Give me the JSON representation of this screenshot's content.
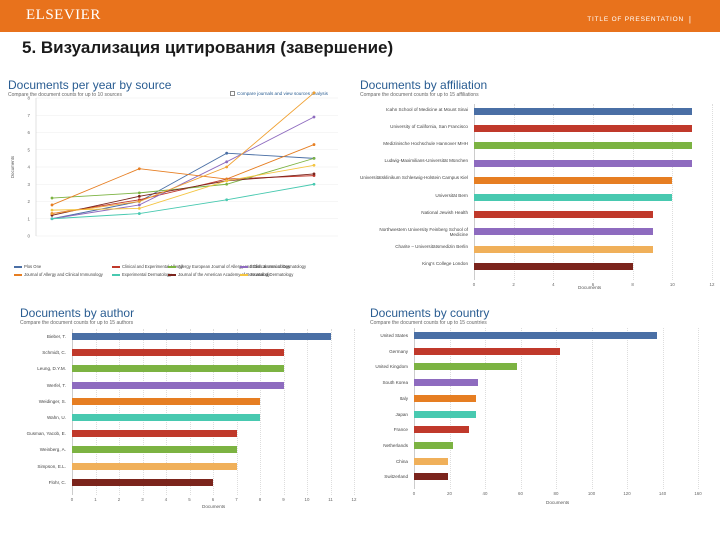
{
  "header": {
    "brand": "ELSEVIER",
    "presentation_label": "TITLE OF PRESENTATION",
    "separator": "|",
    "accent_color": "#e8721c"
  },
  "slide": {
    "title": "5. Визуализация цитирования (завершение)"
  },
  "panels": {
    "source": {
      "title": "Documents per year by source",
      "subtitle": "Compare the document counts for up to 10 sources",
      "compare_label": "Compare journals and view sources analysis",
      "y_axis_label": "Documents"
    },
    "affiliation": {
      "title": "Documents by affiliation",
      "subtitle": "Compare the document counts for up to 15 affiliations",
      "x_axis_label": "Documents"
    },
    "author": {
      "title": "Documents by author",
      "subtitle": "Compare the document counts for up to 15 authors",
      "x_axis_label": "Documents"
    },
    "country": {
      "title": "Documents by country",
      "subtitle": "Compare the document counts for up to 15 countries",
      "x_axis_label": "Documents"
    }
  },
  "chart_data": [
    {
      "type": "line",
      "title": "Documents per year by source",
      "ylabel": "Documents",
      "ylim": [
        0,
        8
      ],
      "yticks": [
        0,
        1,
        2,
        3,
        4,
        5,
        6,
        7,
        8
      ],
      "x": [
        0,
        1,
        2,
        3
      ],
      "series": [
        {
          "name": "Plos One",
          "color": "#4a6fa5",
          "values": [
            1.0,
            2.0,
            4.8,
            4.5
          ]
        },
        {
          "name": "Clinical and Experimental Allergy",
          "color": "#c0392b",
          "values": [
            1.3,
            2.1,
            3.3,
            3.5
          ]
        },
        {
          "name": "Allergy European Journal of Allergy and Clinical Immunology",
          "color": "#7cb342",
          "values": [
            2.2,
            2.5,
            3.0,
            4.5
          ]
        },
        {
          "name": "British Journal of Dermatology",
          "color": "#8e6bbf",
          "values": [
            1.0,
            1.8,
            4.3,
            6.9
          ]
        },
        {
          "name": "Journal of Allergy and Clinical Immunology",
          "color": "#e67e22",
          "values": [
            1.8,
            3.9,
            3.3,
            5.3
          ]
        },
        {
          "name": "Experimental Dermatology",
          "color": "#48c9b0",
          "values": [
            1.0,
            1.3,
            2.1,
            3.0
          ]
        },
        {
          "name": "Journal of the American Academy of Dermatology",
          "color": "#7b241c",
          "values": [
            1.2,
            2.3,
            3.2,
            3.6
          ]
        },
        {
          "name": "Journal of Dermatology",
          "color": "#f4c542",
          "values": [
            1.5,
            1.6,
            3.2,
            4.1
          ]
        },
        {
          "name": "",
          "color": "#f0a030",
          "values": [
            1.3,
            2.0,
            4.0,
            8.3
          ]
        }
      ]
    },
    {
      "type": "bar",
      "orientation": "horizontal",
      "title": "Documents by affiliation",
      "xlabel": "Documents",
      "xlim": [
        0,
        12
      ],
      "xticks": [
        0,
        2,
        4,
        6,
        8,
        10,
        12
      ],
      "categories": [
        "Icahn School of Medicine at Mount Sinai",
        "University of California, San Francisco",
        "Medizinische Hochschule Hannover MHH",
        "Ludwig-Maximilians-Universität München",
        "Universitätsklinikum Schleswig-Holstein Campus Kiel",
        "Universität Bern",
        "National Jewish Health",
        "Northwestern University Feinberg School of Medicine",
        "Charite – Universitätsmedizin Berlin",
        "King's College London"
      ],
      "values": [
        11,
        11,
        11,
        11,
        10,
        10,
        9,
        9,
        9,
        8
      ],
      "colors": [
        "#4a6fa5",
        "#c0392b",
        "#7cb342",
        "#8e6bbf",
        "#e67e22",
        "#48c9b0",
        "#c0392b",
        "#8e6bbf",
        "#f0b05a",
        "#7b241c"
      ]
    },
    {
      "type": "bar",
      "orientation": "horizontal",
      "title": "Documents by author",
      "xlabel": "Documents",
      "xlim": [
        0,
        12
      ],
      "xticks": [
        0,
        1,
        2,
        3,
        4,
        5,
        6,
        7,
        8,
        9,
        10,
        11,
        12
      ],
      "categories": [
        "Bieber, T.",
        "Schmidt, C.",
        "Leung, D.Y.M.",
        "Werfel, T.",
        "Weidinger, S.",
        "Wahn, U.",
        "Gusman, Yacob, E.",
        "Weinberg, A.",
        "Simpson, E.L.",
        "Flohr, C."
      ],
      "values": [
        11,
        9,
        9,
        9,
        8,
        8,
        7,
        7,
        7,
        6
      ],
      "colors": [
        "#4a6fa5",
        "#c0392b",
        "#7cb342",
        "#8e6bbf",
        "#e67e22",
        "#48c9b0",
        "#c0392b",
        "#7cb342",
        "#f0b05a",
        "#7b241c"
      ]
    },
    {
      "type": "bar",
      "orientation": "horizontal",
      "title": "Documents by country",
      "xlabel": "Documents",
      "xlim": [
        0,
        160
      ],
      "xticks": [
        0,
        20,
        40,
        60,
        80,
        100,
        120,
        140,
        160
      ],
      "categories": [
        "United States",
        "Germany",
        "United Kingdom",
        "South Korea",
        "Italy",
        "Japan",
        "France",
        "Netherlands",
        "China",
        "Switzerland"
      ],
      "values": [
        137,
        82,
        58,
        36,
        35,
        35,
        31,
        22,
        19,
        19
      ],
      "colors": [
        "#4a6fa5",
        "#c0392b",
        "#7cb342",
        "#8e6bbf",
        "#e67e22",
        "#48c9b0",
        "#c0392b",
        "#7cb342",
        "#f0b05a",
        "#7b241c"
      ]
    }
  ]
}
